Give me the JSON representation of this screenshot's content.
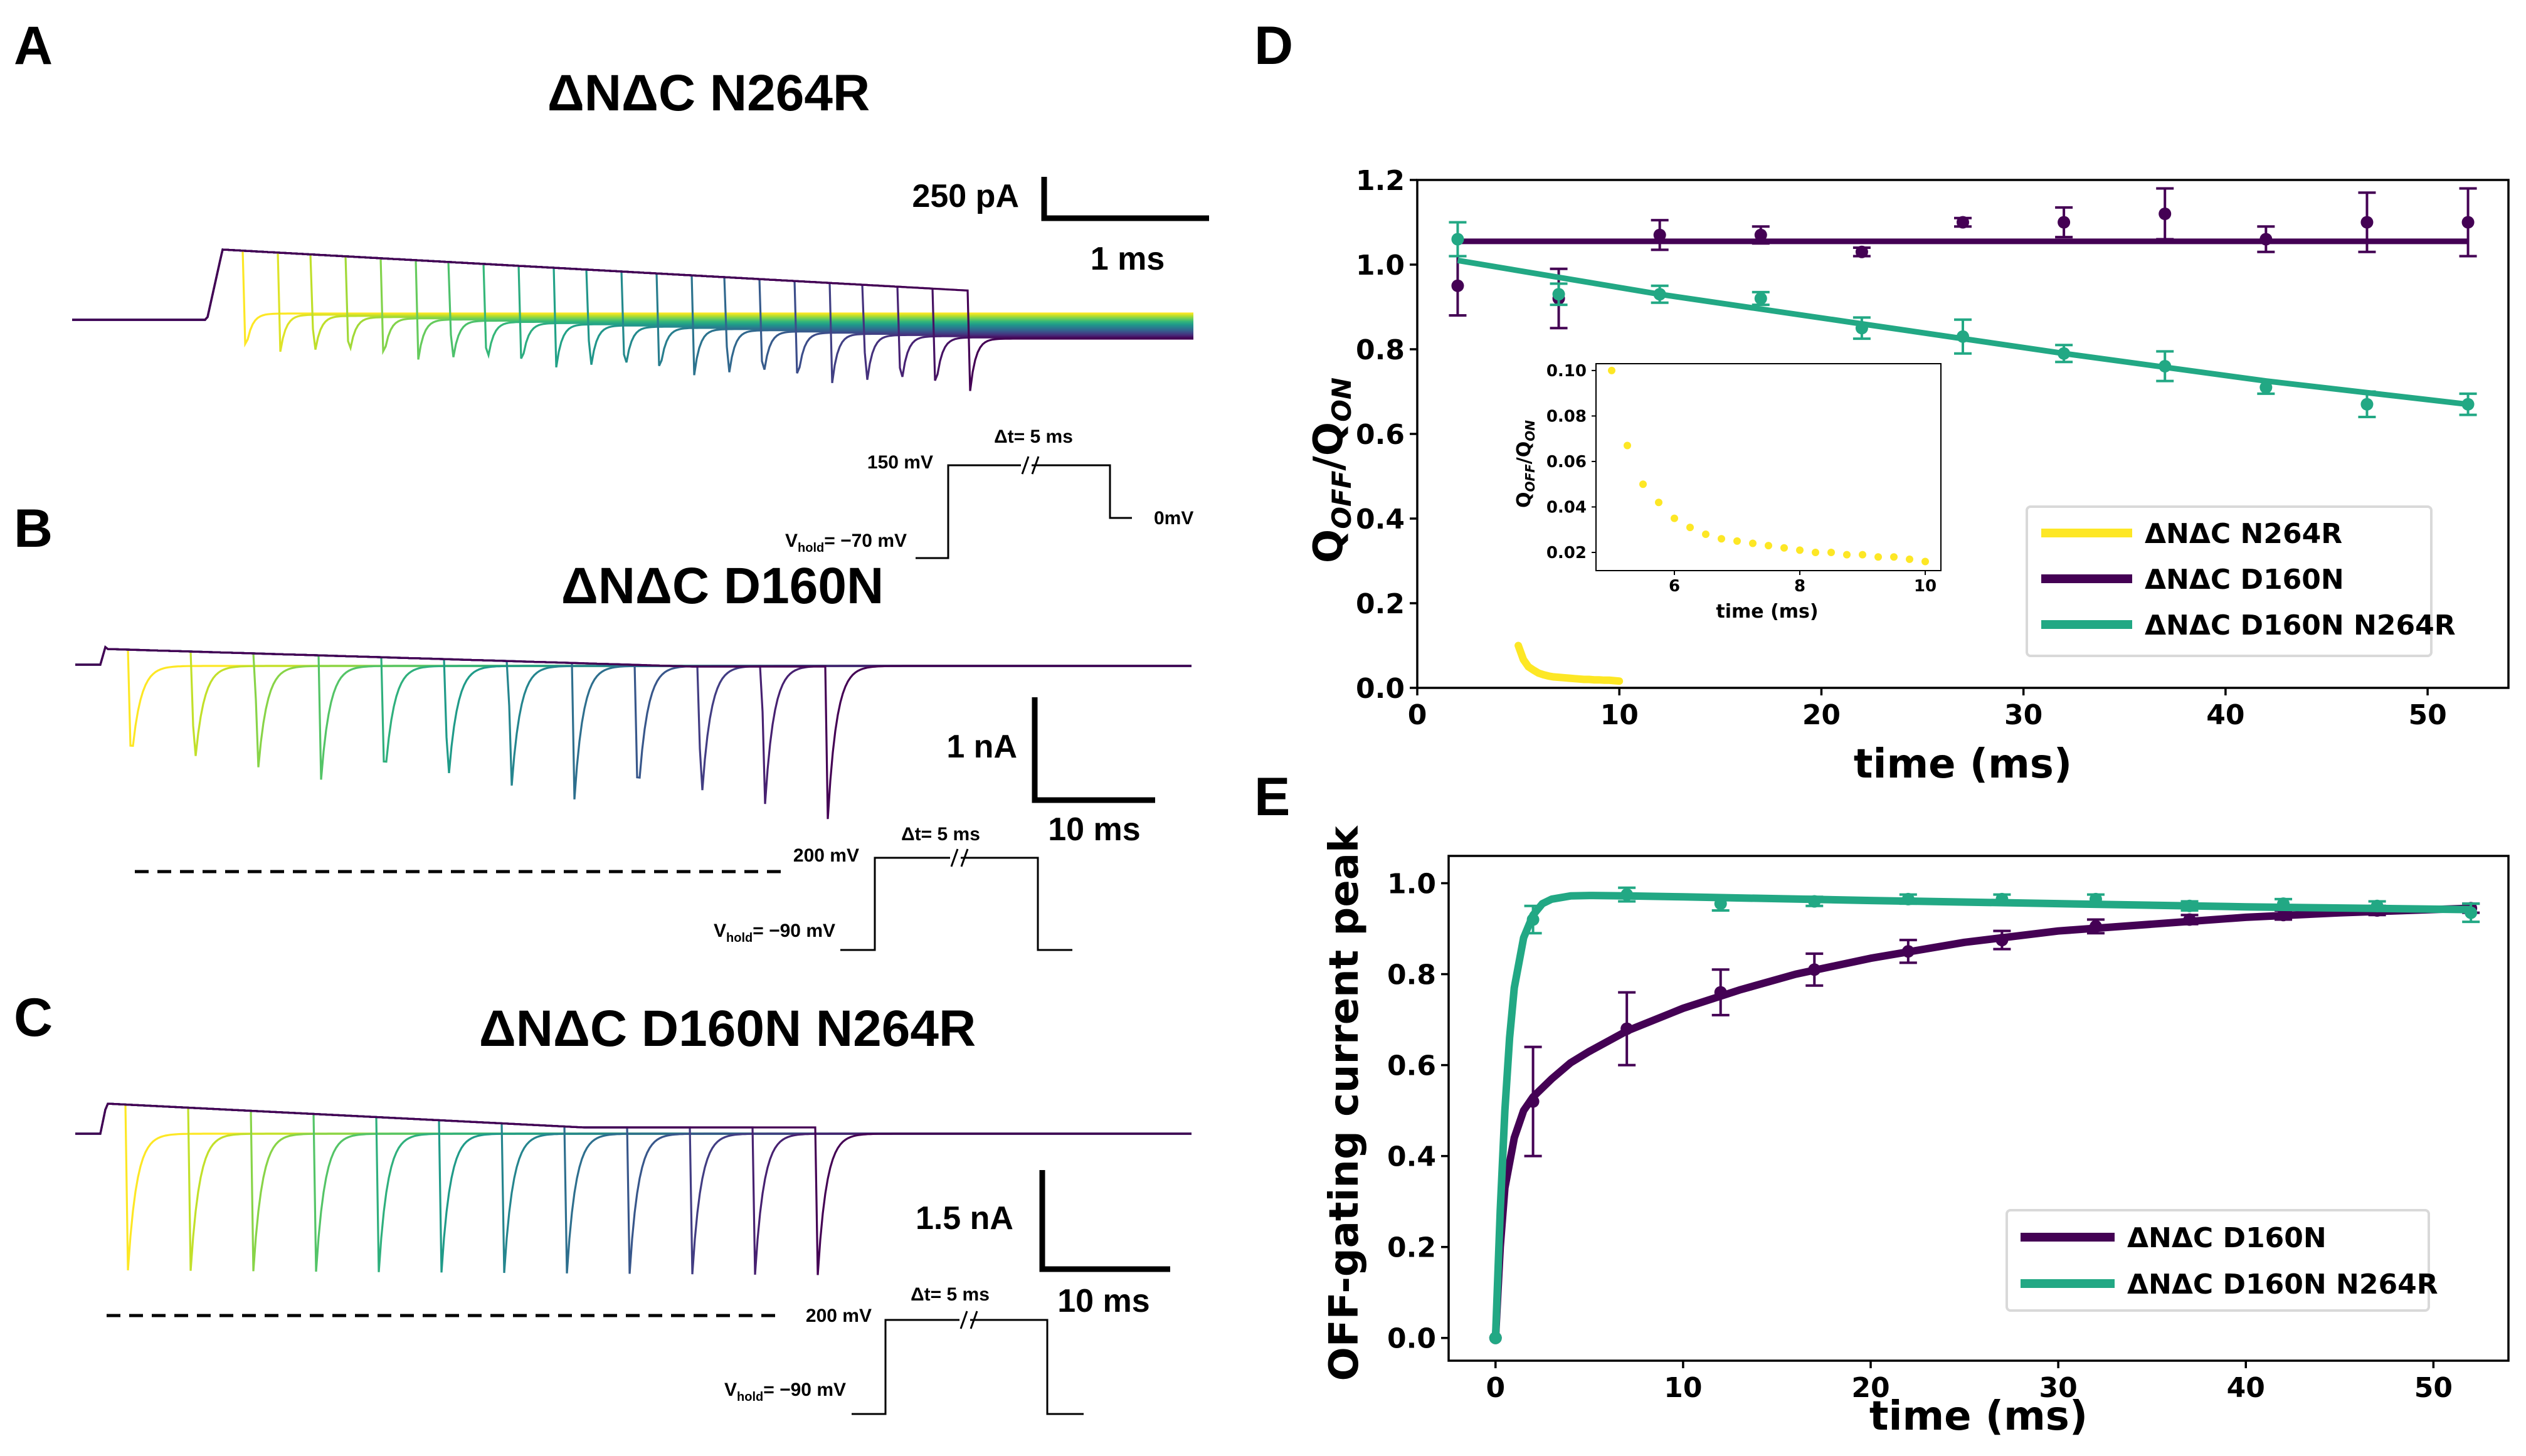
{
  "colors": {
    "d160n": "#440154",
    "d160n_n264r": "#22a884",
    "n264r": "#fde725"
  },
  "panels": {
    "A": {
      "letter": "A",
      "title": "ΔNΔC N264R",
      "scalebar_y": "250 pA",
      "scalebar_x": "1 ms",
      "protocol": {
        "step": "150 mV",
        "dt": "Δt= 5 ms",
        "hold_main": "V",
        "hold_sub": "hold",
        "hold_val": "= −70 mV",
        "end": "0mV"
      }
    },
    "B": {
      "letter": "B",
      "title": "ΔNΔC D160N",
      "scalebar_y": "1 nA",
      "scalebar_x": "10 ms",
      "protocol": {
        "step": "200 mV",
        "dt": "Δt= 5 ms",
        "hold_main": "V",
        "hold_sub": "hold",
        "hold_val": "= −90 mV"
      }
    },
    "C": {
      "letter": "C",
      "title": "ΔNΔC D160N N264R",
      "scalebar_y": "1.5 nA",
      "scalebar_x": "10 ms",
      "protocol": {
        "step": "200 mV",
        "dt": "Δt= 5 ms",
        "hold_main": "V",
        "hold_sub": "hold",
        "hold_val": "= −90 mV"
      }
    },
    "D": {
      "letter": "D"
    },
    "E": {
      "letter": "E"
    }
  },
  "chart_data": [
    {
      "panel": "D",
      "type": "scatter",
      "xlabel": "time (ms)",
      "ylabel": {
        "main": "Q",
        "sub1": "OFF",
        "sep": "/Q",
        "sub2": "ON"
      },
      "xlim": [
        0,
        54
      ],
      "ylim": [
        0,
        1.2
      ],
      "xticks": [
        0,
        10,
        20,
        30,
        40,
        50
      ],
      "yticks": [
        0.0,
        0.2,
        0.4,
        0.6,
        0.8,
        1.0,
        1.2
      ],
      "grid": false,
      "legend_position": "lower-right",
      "series": [
        {
          "name": "ΔNΔC N264R",
          "color": "#fde725",
          "x": [
            5.0,
            5.25,
            5.5,
            5.75,
            6.0,
            6.25,
            6.5,
            6.75,
            7.0,
            7.25,
            7.5,
            7.75,
            8.0,
            8.25,
            8.5,
            8.75,
            9.0,
            9.25,
            9.5,
            9.75,
            10.0
          ],
          "y": [
            0.1,
            0.067,
            0.05,
            0.042,
            0.035,
            0.031,
            0.028,
            0.026,
            0.025,
            0.024,
            0.023,
            0.022,
            0.021,
            0.02,
            0.02,
            0.019,
            0.019,
            0.018,
            0.018,
            0.017,
            0.016
          ]
        },
        {
          "name": "ΔNΔC D160N",
          "color": "#440154",
          "x": [
            2,
            7,
            12,
            17,
            22,
            27,
            32,
            37,
            42,
            47,
            52
          ],
          "y": [
            0.95,
            0.92,
            1.07,
            1.07,
            1.03,
            1.1,
            1.1,
            1.12,
            1.06,
            1.1,
            1.1
          ],
          "err": [
            0.07,
            0.07,
            0.035,
            0.02,
            0.01,
            0.01,
            0.035,
            0.06,
            0.03,
            0.07,
            0.08
          ],
          "fit": {
            "x": [
              2,
              52
            ],
            "y": [
              1.055,
              1.055
            ]
          }
        },
        {
          "name": "ΔNΔC D160N N264R",
          "color": "#22a884",
          "x": [
            2,
            7,
            12,
            17,
            22,
            27,
            32,
            37,
            42,
            47,
            52
          ],
          "y": [
            1.06,
            0.93,
            0.93,
            0.92,
            0.85,
            0.83,
            0.79,
            0.76,
            0.71,
            0.67,
            0.67
          ],
          "err": [
            0.04,
            0.025,
            0.02,
            0.015,
            0.025,
            0.04,
            0.02,
            0.035,
            0.015,
            0.03,
            0.025
          ],
          "fit": {
            "x": [
              2,
              12,
              22,
              32,
              42,
              52
            ],
            "y": [
              1.01,
              0.93,
              0.86,
              0.79,
              0.725,
              0.67
            ]
          }
        }
      ],
      "inset": {
        "type": "scatter",
        "xlabel": "time (ms)",
        "ylabel": {
          "main": "Q",
          "sub1": "OFF",
          "sep": "/Q",
          "sub2": "ON"
        },
        "xlim": [
          4.75,
          10.25
        ],
        "ylim": [
          0.012,
          0.103
        ],
        "xticks": [
          6,
          8,
          10
        ],
        "yticks": [
          0.02,
          0.04,
          0.06,
          0.08,
          0.1
        ],
        "ytick_labels": [
          "0.02",
          "0.04",
          "0.06",
          "0.08",
          "0.10"
        ],
        "series_index": 0
      }
    },
    {
      "panel": "E",
      "type": "scatter",
      "xlabel": "time (ms)",
      "ylabel": "OFF-gating current peak",
      "xlim": [
        -2.5,
        54
      ],
      "ylim": [
        -0.05,
        1.06
      ],
      "xticks": [
        0,
        10,
        20,
        30,
        40,
        50
      ],
      "yticks": [
        0.0,
        0.2,
        0.4,
        0.6,
        0.8,
        1.0
      ],
      "grid": false,
      "legend_position": "lower-right",
      "series": [
        {
          "name": "ΔNΔC D160N",
          "color": "#440154",
          "x": [
            0,
            2,
            7,
            12,
            17,
            22,
            27,
            32,
            37,
            42,
            47,
            52
          ],
          "y": [
            0.0,
            0.52,
            0.68,
            0.76,
            0.81,
            0.85,
            0.875,
            0.905,
            0.92,
            0.93,
            0.94,
            0.945
          ],
          "err": [
            0,
            0.12,
            0.08,
            0.05,
            0.035,
            0.025,
            0.02,
            0.015,
            0.01,
            0.01,
            0.01,
            0.01
          ],
          "fit": {
            "x": [
              0,
              0.25,
              0.5,
              1,
              1.5,
              2,
              3,
              4,
              5,
              7,
              10,
              13,
              16,
              20,
              25,
              30,
              35,
              40,
              45,
              52
            ],
            "y": [
              0,
              0.2,
              0.33,
              0.44,
              0.5,
              0.53,
              0.57,
              0.605,
              0.63,
              0.675,
              0.725,
              0.765,
              0.8,
              0.835,
              0.87,
              0.895,
              0.91,
              0.925,
              0.935,
              0.945
            ]
          }
        },
        {
          "name": "ΔNΔC D160N N264R",
          "color": "#22a884",
          "x": [
            0,
            2,
            7,
            12,
            17,
            22,
            27,
            32,
            37,
            42,
            47,
            52
          ],
          "y": [
            0.0,
            0.92,
            0.975,
            0.955,
            0.96,
            0.965,
            0.965,
            0.965,
            0.95,
            0.955,
            0.95,
            0.935
          ],
          "err": [
            0,
            0.03,
            0.015,
            0.015,
            0.01,
            0.01,
            0.01,
            0.01,
            0.01,
            0.01,
            0.01,
            0.02
          ],
          "fit": {
            "x": [
              0,
              0.25,
              0.5,
              0.75,
              1,
              1.5,
              2,
              2.5,
              3,
              4,
              5,
              7,
              10,
              20,
              30,
              40,
              52
            ],
            "y": [
              0,
              0.28,
              0.5,
              0.66,
              0.77,
              0.88,
              0.93,
              0.955,
              0.965,
              0.972,
              0.973,
              0.972,
              0.97,
              0.962,
              0.955,
              0.948,
              0.942
            ]
          }
        }
      ]
    }
  ]
}
